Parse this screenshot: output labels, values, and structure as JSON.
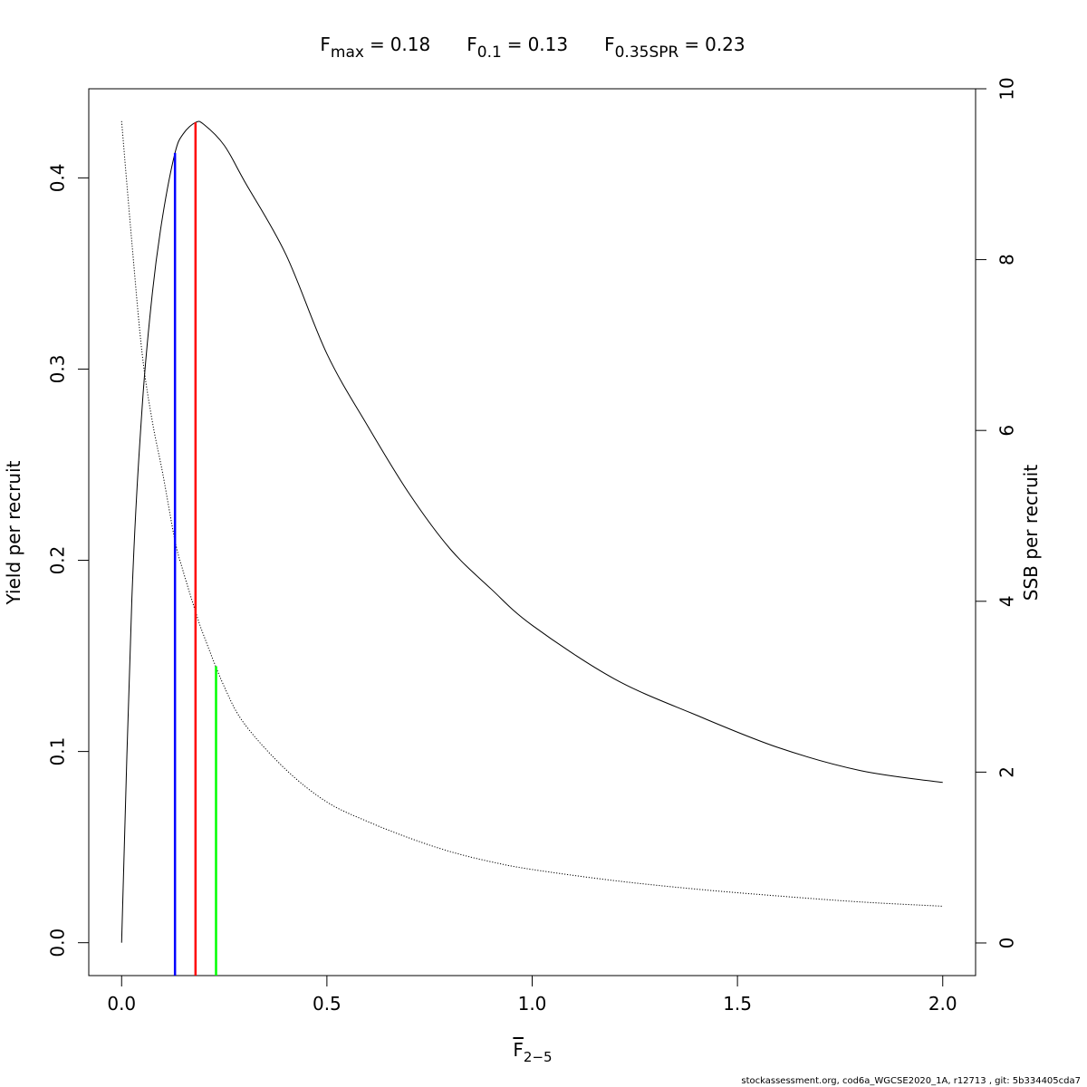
{
  "chart_data": {
    "type": "line",
    "title_parts": [
      {
        "symbol": "F",
        "subscript": "max",
        "value": 0.18
      },
      {
        "symbol": "F",
        "subscript": "0.1",
        "value": 0.13
      },
      {
        "symbol": "F",
        "subscript": "0.35SPR",
        "value": 0.23
      }
    ],
    "relation": "=",
    "xlabel": {
      "symbol": "F",
      "subscript": "2−5"
    },
    "ylabel": "Yield per recruit",
    "y2label": "SSB per recruit",
    "footer": "stockassessment.org, cod6a_WGCSE2020_1A, r12713 , git: 5b334405cda7",
    "x": [
      0,
      0.025,
      0.05,
      0.075,
      0.1,
      0.13,
      0.15,
      0.18,
      0.2,
      0.25,
      0.3,
      0.4,
      0.5,
      0.6,
      0.7,
      0.8,
      0.9,
      1.0,
      1.2,
      1.4,
      1.6,
      1.8,
      2.0
    ],
    "series": [
      {
        "name": "Yield per recruit",
        "color": "#000000",
        "dash": "solid",
        "values": [
          0,
          0.18,
          0.28,
          0.34,
          0.38,
          0.413,
          0.423,
          0.429,
          0.428,
          0.417,
          0.398,
          0.36,
          0.308,
          0.27,
          0.235,
          0.206,
          0.185,
          0.166,
          0.138,
          0.119,
          0.102,
          0.09,
          0.0838
        ]
      },
      {
        "name": "SSB per recruit",
        "color": "#000000",
        "dash": "dotted",
        "axis": "y2",
        "values": [
          9.62,
          8.2,
          6.9,
          6.1,
          5.5,
          4.71,
          4.35,
          3.88,
          3.6,
          3.0,
          2.56,
          2.03,
          1.65,
          1.42,
          1.23,
          1.07,
          0.95,
          0.86,
          0.73,
          0.63,
          0.55,
          0.48,
          0.43
        ]
      }
    ],
    "reference_lines": [
      {
        "x": 0.13,
        "top": 0.413,
        "color": "#0000ff"
      },
      {
        "x": 0.18,
        "top": 0.429,
        "color": "#ff0000"
      },
      {
        "x": 0.23,
        "top": 3.24,
        "axis": "y2",
        "color": "#00ff00"
      }
    ],
    "xlim": [
      -0.08,
      2.08
    ],
    "xticks": [
      {
        "value": 0,
        "label": "0.0"
      },
      {
        "value": 0.5,
        "label": "0.5"
      },
      {
        "value": 1,
        "label": "1.0"
      },
      {
        "value": 1.5,
        "label": "1.5"
      },
      {
        "value": 2,
        "label": "2.0"
      }
    ],
    "ylim": [
      -0.0172,
      0.4466
    ],
    "yticks": [
      {
        "value": 0,
        "label": "0.0"
      },
      0.1,
      0.2,
      0.3,
      0.4
    ],
    "y2lim": [
      -0.382,
      10
    ],
    "y2ticks": [
      0,
      2,
      4,
      6,
      8,
      10
    ]
  }
}
